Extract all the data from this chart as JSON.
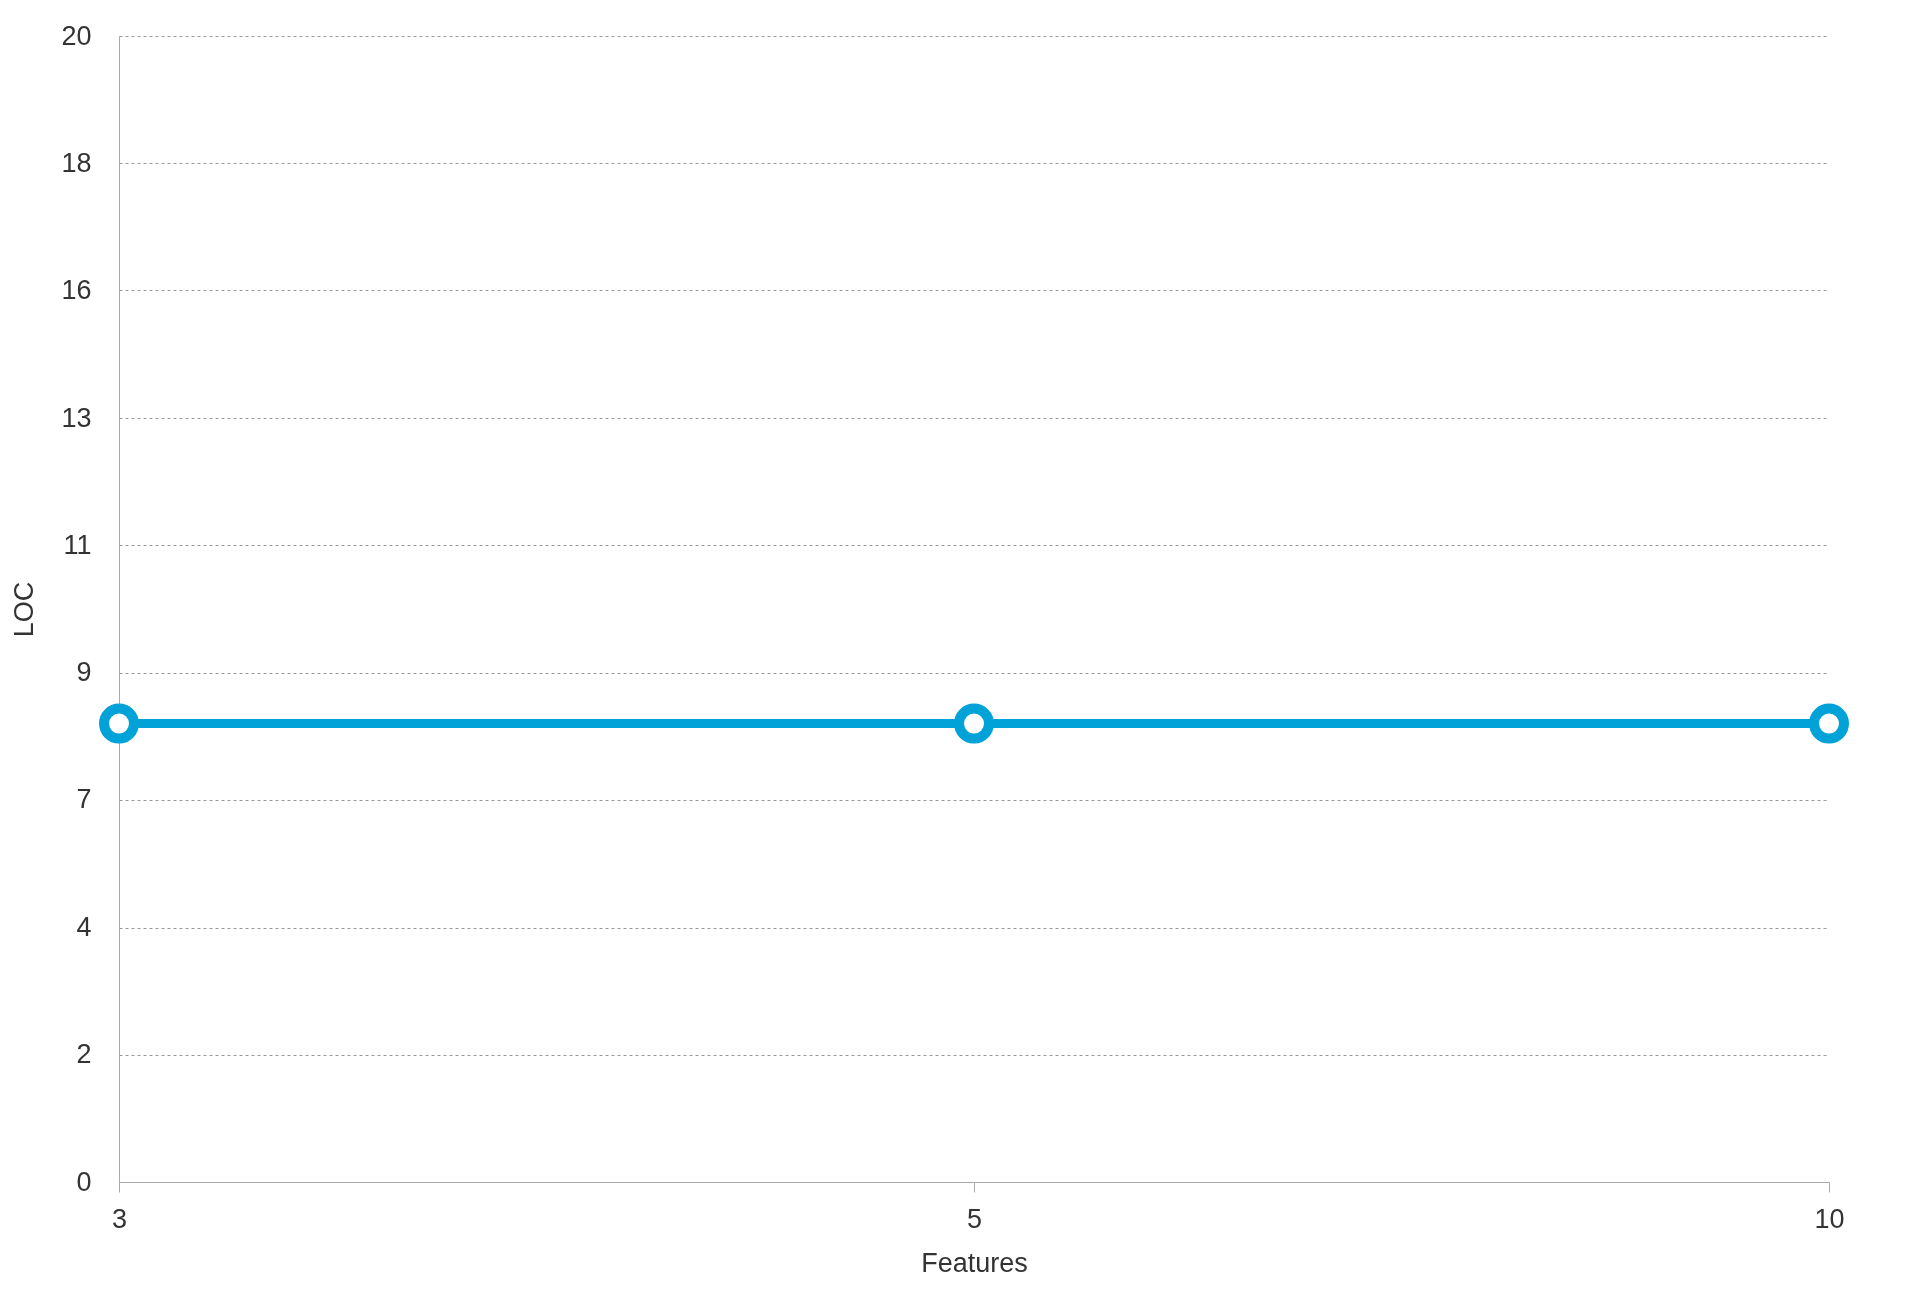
{
  "chart_data": {
    "type": "line",
    "xlabel": "Features",
    "ylabel": "LOC",
    "categories": [
      "3",
      "5",
      "10"
    ],
    "series": [
      {
        "color": "#00a2d8",
        "values": [
          8,
          8,
          8
        ]
      }
    ],
    "ylim": [
      0,
      20
    ],
    "yticks": [
      0,
      {
        "value": 2.22,
        "label": "2"
      },
      {
        "value": 4.44,
        "label": "4"
      },
      {
        "value": 6.67,
        "label": "7"
      },
      {
        "value": 8.89,
        "label": "9"
      },
      {
        "value": 11.11,
        "label": "11"
      },
      {
        "value": 13.33,
        "label": "13"
      },
      {
        "value": 15.56,
        "label": "16"
      },
      {
        "value": 17.78,
        "label": "18"
      },
      20
    ],
    "grid": "y",
    "marker": "circle",
    "line_style": "solid"
  }
}
